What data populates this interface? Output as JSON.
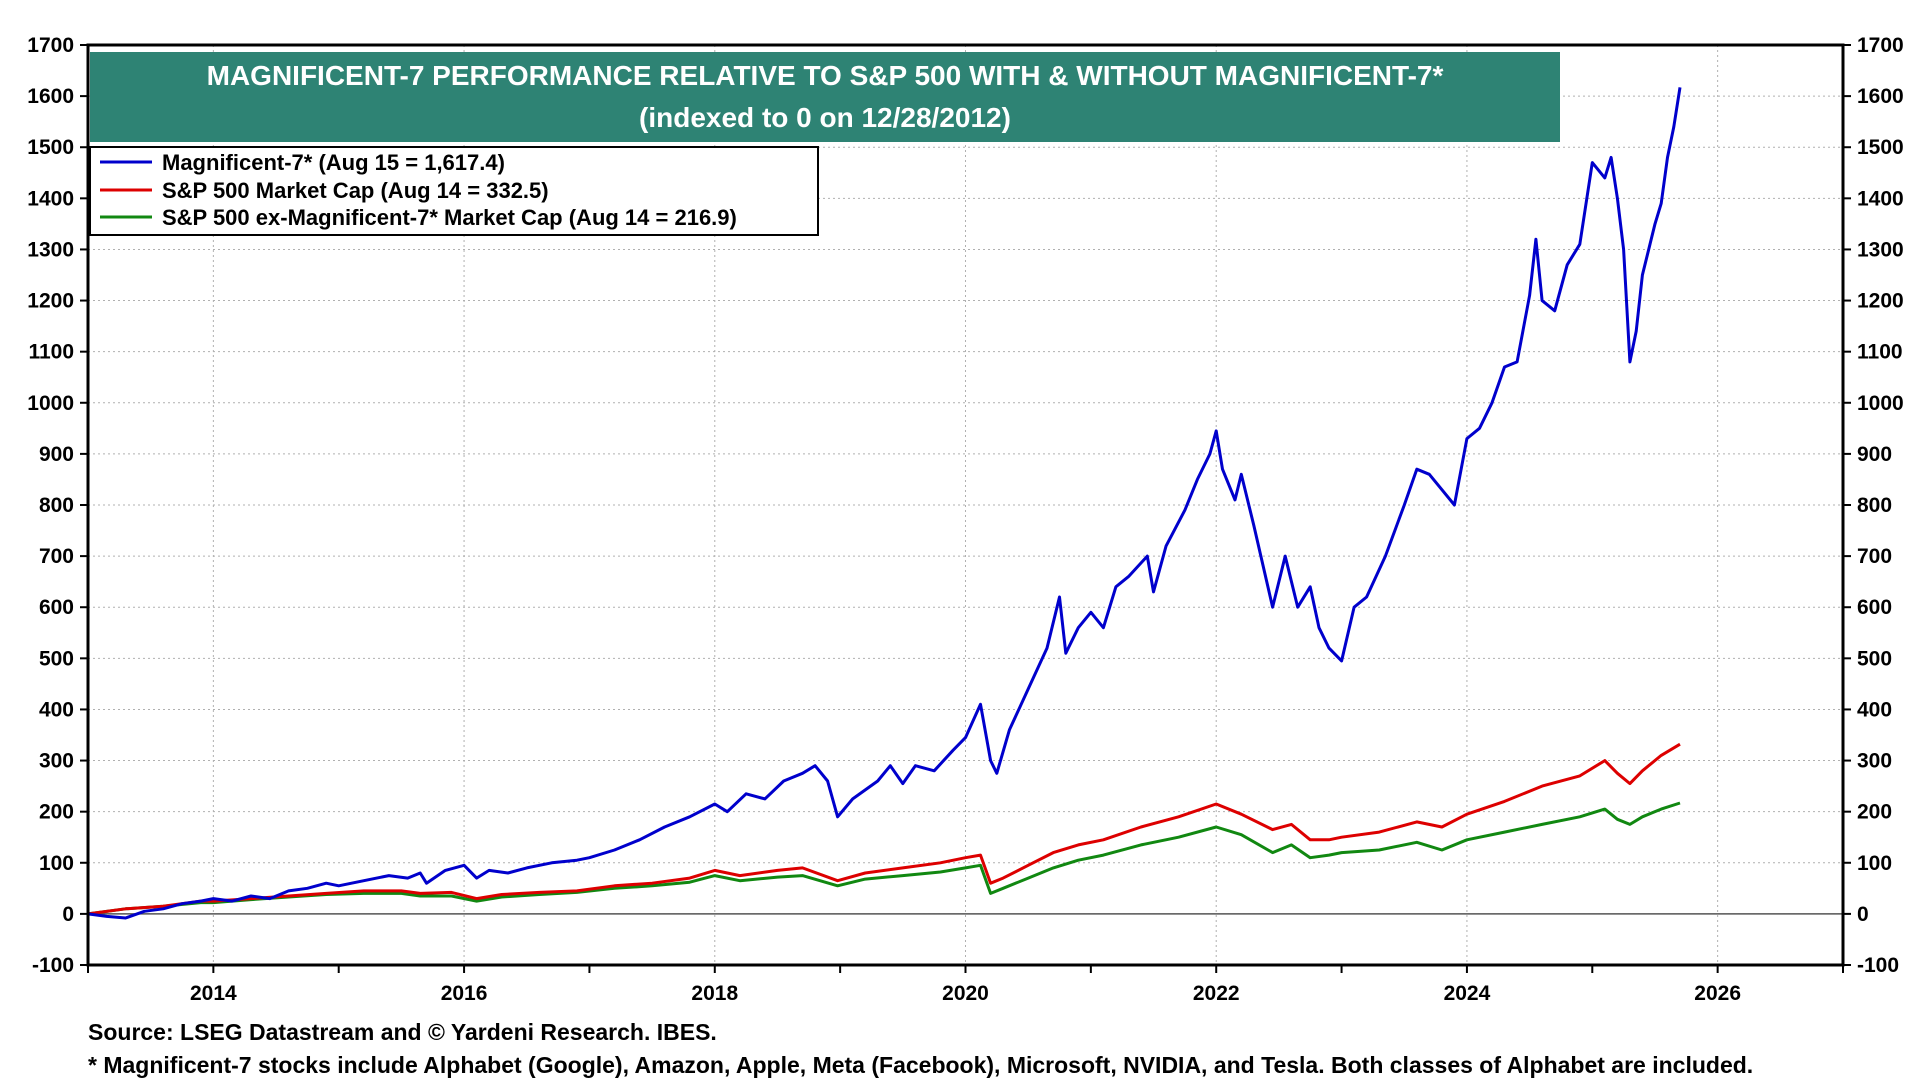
{
  "chart_data": {
    "type": "line",
    "title": "MAGNIFICENT-7 PERFORMANCE RELATIVE TO S&P 500 WITH & WITHOUT MAGNIFICENT-7*",
    "subtitle": "(indexed to 0 on 12/28/2012)",
    "xlim": [
      2013.0,
      2027.0
    ],
    "ylim": [
      -100,
      1700
    ],
    "x_ticks": [
      2014,
      2016,
      2018,
      2020,
      2022,
      2024,
      2026
    ],
    "x_tick_labels": [
      "2014",
      "2016",
      "2018",
      "2020",
      "2022",
      "2024",
      "2026"
    ],
    "y_ticks": [
      -100,
      0,
      100,
      200,
      300,
      400,
      500,
      600,
      700,
      800,
      900,
      1000,
      1100,
      1200,
      1300,
      1400,
      1500,
      1600,
      1700
    ],
    "y_tick_labels": [
      "-100",
      "0",
      "100",
      "200",
      "300",
      "400",
      "500",
      "600",
      "700",
      "800",
      "900",
      "1000",
      "1100",
      "1200",
      "1300",
      "1400",
      "1500",
      "1600",
      "1700"
    ],
    "grid": true,
    "legend_position": "top-left",
    "series": [
      {
        "name": "Magnificent-7* (Aug 15 = 1,617.4)",
        "color": "#0000cc",
        "points": [
          [
            2013.0,
            0
          ],
          [
            2013.15,
            -5
          ],
          [
            2013.3,
            -8
          ],
          [
            2013.45,
            5
          ],
          [
            2013.6,
            10
          ],
          [
            2013.75,
            20
          ],
          [
            2013.9,
            25
          ],
          [
            2014.0,
            30
          ],
          [
            2014.15,
            25
          ],
          [
            2014.3,
            35
          ],
          [
            2014.45,
            30
          ],
          [
            2014.6,
            45
          ],
          [
            2014.75,
            50
          ],
          [
            2014.9,
            60
          ],
          [
            2015.0,
            55
          ],
          [
            2015.2,
            65
          ],
          [
            2015.4,
            75
          ],
          [
            2015.55,
            70
          ],
          [
            2015.65,
            80
          ],
          [
            2015.7,
            60
          ],
          [
            2015.85,
            85
          ],
          [
            2016.0,
            95
          ],
          [
            2016.1,
            70
          ],
          [
            2016.2,
            85
          ],
          [
            2016.35,
            80
          ],
          [
            2016.5,
            90
          ],
          [
            2016.7,
            100
          ],
          [
            2016.9,
            105
          ],
          [
            2017.0,
            110
          ],
          [
            2017.2,
            125
          ],
          [
            2017.4,
            145
          ],
          [
            2017.6,
            170
          ],
          [
            2017.8,
            190
          ],
          [
            2018.0,
            215
          ],
          [
            2018.1,
            200
          ],
          [
            2018.25,
            235
          ],
          [
            2018.4,
            225
          ],
          [
            2018.55,
            260
          ],
          [
            2018.7,
            275
          ],
          [
            2018.8,
            290
          ],
          [
            2018.9,
            260
          ],
          [
            2018.98,
            190
          ],
          [
            2019.1,
            225
          ],
          [
            2019.3,
            260
          ],
          [
            2019.4,
            290
          ],
          [
            2019.5,
            255
          ],
          [
            2019.6,
            290
          ],
          [
            2019.75,
            280
          ],
          [
            2019.9,
            320
          ],
          [
            2020.0,
            345
          ],
          [
            2020.12,
            410
          ],
          [
            2020.2,
            300
          ],
          [
            2020.25,
            275
          ],
          [
            2020.35,
            360
          ],
          [
            2020.5,
            440
          ],
          [
            2020.65,
            520
          ],
          [
            2020.75,
            620
          ],
          [
            2020.8,
            510
          ],
          [
            2020.9,
            560
          ],
          [
            2021.0,
            590
          ],
          [
            2021.1,
            560
          ],
          [
            2021.2,
            640
          ],
          [
            2021.3,
            660
          ],
          [
            2021.45,
            700
          ],
          [
            2021.5,
            630
          ],
          [
            2021.6,
            720
          ],
          [
            2021.75,
            790
          ],
          [
            2021.85,
            850
          ],
          [
            2021.95,
            900
          ],
          [
            2022.0,
            945
          ],
          [
            2022.05,
            870
          ],
          [
            2022.15,
            810
          ],
          [
            2022.2,
            860
          ],
          [
            2022.3,
            760
          ],
          [
            2022.45,
            600
          ],
          [
            2022.55,
            700
          ],
          [
            2022.65,
            600
          ],
          [
            2022.75,
            640
          ],
          [
            2022.82,
            560
          ],
          [
            2022.9,
            520
          ],
          [
            2023.0,
            495
          ],
          [
            2023.1,
            600
          ],
          [
            2023.2,
            620
          ],
          [
            2023.35,
            700
          ],
          [
            2023.5,
            800
          ],
          [
            2023.6,
            870
          ],
          [
            2023.7,
            860
          ],
          [
            2023.8,
            830
          ],
          [
            2023.9,
            800
          ],
          [
            2024.0,
            930
          ],
          [
            2024.1,
            950
          ],
          [
            2024.2,
            1000
          ],
          [
            2024.3,
            1070
          ],
          [
            2024.4,
            1080
          ],
          [
            2024.5,
            1210
          ],
          [
            2024.55,
            1320
          ],
          [
            2024.6,
            1200
          ],
          [
            2024.7,
            1180
          ],
          [
            2024.8,
            1270
          ],
          [
            2024.9,
            1310
          ],
          [
            2025.0,
            1470
          ],
          [
            2025.1,
            1440
          ],
          [
            2025.15,
            1480
          ],
          [
            2025.2,
            1400
          ],
          [
            2025.25,
            1300
          ],
          [
            2025.3,
            1080
          ],
          [
            2025.35,
            1140
          ],
          [
            2025.4,
            1250
          ],
          [
            2025.5,
            1350
          ],
          [
            2025.55,
            1390
          ],
          [
            2025.6,
            1480
          ],
          [
            2025.65,
            1540
          ],
          [
            2025.7,
            1617
          ]
        ]
      },
      {
        "name": "S&P 500 Market Cap (Aug 14 = 332.5)",
        "color": "#dd0000",
        "points": [
          [
            2013.0,
            0
          ],
          [
            2013.3,
            10
          ],
          [
            2013.6,
            15
          ],
          [
            2013.9,
            25
          ],
          [
            2014.0,
            25
          ],
          [
            2014.3,
            30
          ],
          [
            2014.6,
            35
          ],
          [
            2014.9,
            40
          ],
          [
            2015.2,
            45
          ],
          [
            2015.5,
            45
          ],
          [
            2015.65,
            40
          ],
          [
            2015.9,
            42
          ],
          [
            2016.1,
            30
          ],
          [
            2016.3,
            38
          ],
          [
            2016.6,
            42
          ],
          [
            2016.9,
            45
          ],
          [
            2017.2,
            55
          ],
          [
            2017.5,
            60
          ],
          [
            2017.8,
            70
          ],
          [
            2018.0,
            85
          ],
          [
            2018.2,
            75
          ],
          [
            2018.5,
            85
          ],
          [
            2018.7,
            90
          ],
          [
            2018.98,
            65
          ],
          [
            2019.2,
            80
          ],
          [
            2019.5,
            90
          ],
          [
            2019.8,
            100
          ],
          [
            2020.0,
            110
          ],
          [
            2020.12,
            115
          ],
          [
            2020.2,
            60
          ],
          [
            2020.3,
            70
          ],
          [
            2020.5,
            95
          ],
          [
            2020.7,
            120
          ],
          [
            2020.9,
            135
          ],
          [
            2021.1,
            145
          ],
          [
            2021.4,
            170
          ],
          [
            2021.7,
            190
          ],
          [
            2022.0,
            215
          ],
          [
            2022.2,
            195
          ],
          [
            2022.45,
            165
          ],
          [
            2022.6,
            175
          ],
          [
            2022.75,
            145
          ],
          [
            2022.9,
            145
          ],
          [
            2023.0,
            150
          ],
          [
            2023.3,
            160
          ],
          [
            2023.6,
            180
          ],
          [
            2023.8,
            170
          ],
          [
            2024.0,
            195
          ],
          [
            2024.3,
            220
          ],
          [
            2024.6,
            250
          ],
          [
            2024.9,
            270
          ],
          [
            2025.1,
            300
          ],
          [
            2025.2,
            275
          ],
          [
            2025.3,
            255
          ],
          [
            2025.4,
            280
          ],
          [
            2025.55,
            310
          ],
          [
            2025.7,
            332
          ]
        ]
      },
      {
        "name": "S&P 500 ex-Magnificent-7* Market Cap (Aug 14 = 216.9)",
        "color": "#118811",
        "points": [
          [
            2013.0,
            0
          ],
          [
            2013.3,
            10
          ],
          [
            2013.6,
            15
          ],
          [
            2013.9,
            22
          ],
          [
            2014.0,
            22
          ],
          [
            2014.3,
            28
          ],
          [
            2014.6,
            33
          ],
          [
            2014.9,
            38
          ],
          [
            2015.2,
            40
          ],
          [
            2015.5,
            40
          ],
          [
            2015.65,
            35
          ],
          [
            2015.9,
            35
          ],
          [
            2016.1,
            25
          ],
          [
            2016.3,
            33
          ],
          [
            2016.6,
            38
          ],
          [
            2016.9,
            42
          ],
          [
            2017.2,
            50
          ],
          [
            2017.5,
            55
          ],
          [
            2017.8,
            62
          ],
          [
            2018.0,
            75
          ],
          [
            2018.2,
            65
          ],
          [
            2018.5,
            72
          ],
          [
            2018.7,
            75
          ],
          [
            2018.98,
            55
          ],
          [
            2019.2,
            68
          ],
          [
            2019.5,
            75
          ],
          [
            2019.8,
            82
          ],
          [
            2020.0,
            90
          ],
          [
            2020.12,
            95
          ],
          [
            2020.2,
            40
          ],
          [
            2020.3,
            50
          ],
          [
            2020.5,
            70
          ],
          [
            2020.7,
            90
          ],
          [
            2020.9,
            105
          ],
          [
            2021.1,
            115
          ],
          [
            2021.4,
            135
          ],
          [
            2021.7,
            150
          ],
          [
            2022.0,
            170
          ],
          [
            2022.2,
            155
          ],
          [
            2022.45,
            120
          ],
          [
            2022.6,
            135
          ],
          [
            2022.75,
            110
          ],
          [
            2022.9,
            115
          ],
          [
            2023.0,
            120
          ],
          [
            2023.3,
            125
          ],
          [
            2023.6,
            140
          ],
          [
            2023.8,
            125
          ],
          [
            2024.0,
            145
          ],
          [
            2024.3,
            160
          ],
          [
            2024.6,
            175
          ],
          [
            2024.9,
            190
          ],
          [
            2025.1,
            205
          ],
          [
            2025.2,
            185
          ],
          [
            2025.3,
            175
          ],
          [
            2025.4,
            190
          ],
          [
            2025.55,
            205
          ],
          [
            2025.7,
            217
          ]
        ]
      }
    ]
  },
  "footer": {
    "source": "Source: LSEG Datastream and © Yardeni Research. IBES.",
    "note": "* Magnificent-7 stocks include Alphabet (Google), Amazon, Apple, Meta (Facebook), Microsoft, NVIDIA, and Tesla. Both classes of Alphabet are included."
  },
  "colors": {
    "title_bg": "#2e8374",
    "zero_line": "#555555"
  }
}
